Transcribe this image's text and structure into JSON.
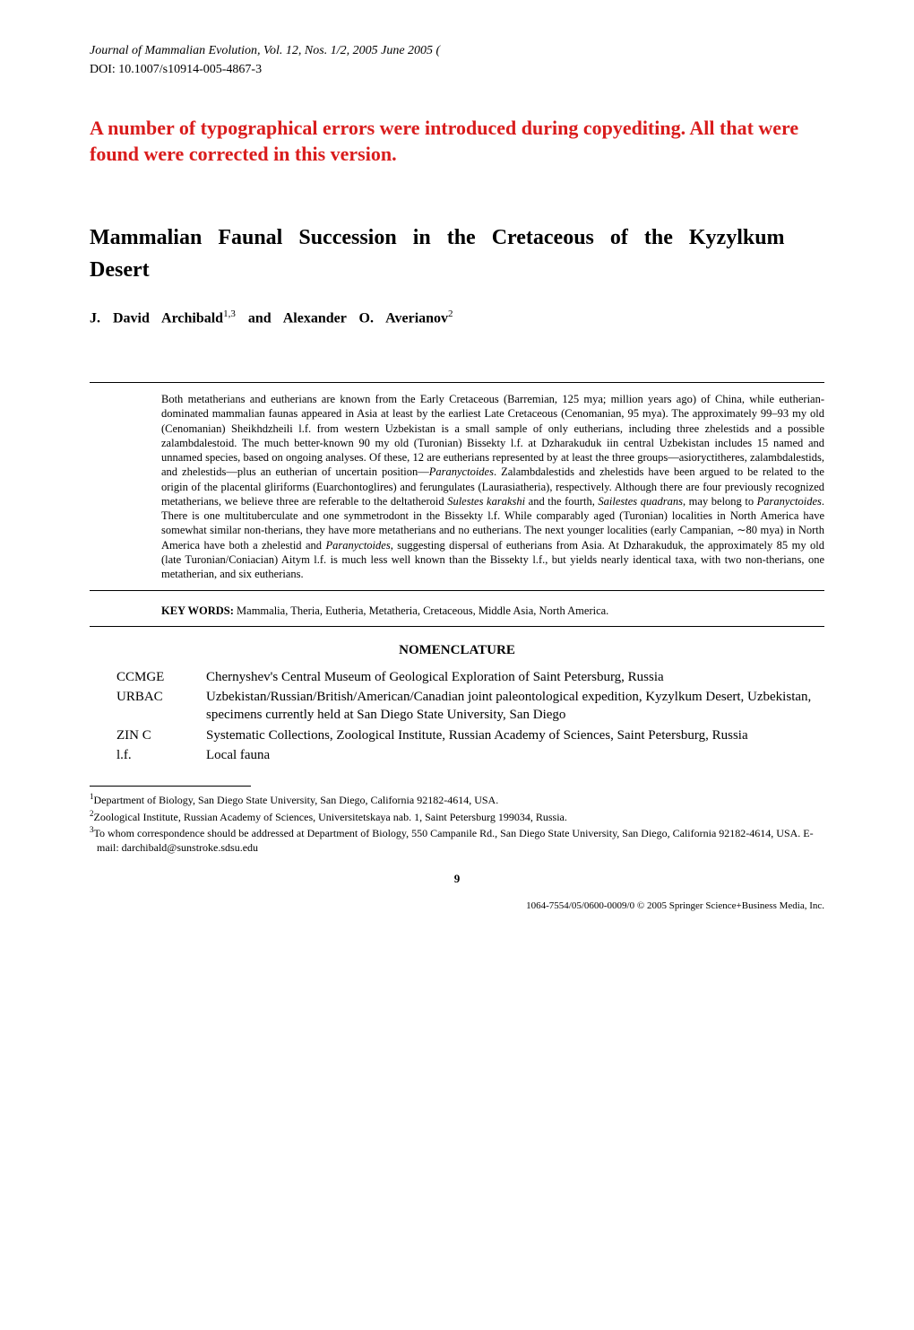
{
  "header": {
    "journal_line": "Journal of Mammalian Evolution, Vol. 12, Nos. 1/2, 2005 June 2005 (",
    "doi": "DOI: 10.1007/s10914-005-4867-3"
  },
  "red_notice": "A number of typographical errors were introduced during copyediting.  All that were found were corrected in this version.",
  "title": "Mammalian Faunal Succession in the Cretaceous of the Kyzylkum Desert",
  "authors": {
    "prefix_1": "J. David Archibald",
    "sup_1": "1,3",
    "connector": "and Alexander O. Averianov",
    "sup_2": "2"
  },
  "abstract": "Both metatherians and eutherians are known from the Early Cretaceous (Barremian, 125 mya; million years ago) of China, while eutherian-dominated mammalian faunas appeared in Asia at least by the earliest Late Cretaceous (Cenomanian, 95 mya). The approximately 99–93 my old (Cenomanian) Sheikhdzheili l.f. from western Uzbekistan is a small sample of only eutherians, including three zhelestids and a possible zalambdalestoid. The much better-known 90 my old (Turonian) Bissekty l.f. at Dzharakuduk iin central Uzbekistan includes 15 named and unnamed species, based on ongoing analyses. Of these, 12 are eutherians represented by at least the three groups—asioryctitheres, zalambdalestids, and zhelestids—plus an eutherian of uncertain position—Paranyctoides. Zalambdalestids and zhelestids have been argued to be related to the origin of the placental gliriforms (Euarchontoglires) and ferungulates (Laurasiatheria), respectively. Although there are four previously recognized metatherians, we believe three are referable to the deltatheroid Sulestes karakshi and the fourth, Sailestes quadrans, may belong to Paranyctoides. There is one multituberculate and one symmetrodont in the Bissekty l.f. While comparably aged (Turonian) localities in North America have somewhat similar non-therians, they have more metatherians and no eutherians. The next younger localities (early Campanian, ∼80 mya) in North America have both a zhelestid and Paranyctoides, suggesting dispersal of eutherians from Asia. At Dzharakuduk, the approximately 85 my old (late Turonian/Coniacian) Aitym l.f. is much less well known than the Bissekty l.f., but yields nearly identical taxa, with two non-therians, one metatherian, and six eutherians.",
  "keywords": {
    "label": "KEY WORDS:",
    "text": " Mammalia, Theria, Eutheria, Metatheria, Cretaceous, Middle Asia, North America."
  },
  "nomenclature": {
    "heading": "NOMENCLATURE",
    "items": [
      {
        "abbrev": "CCMGE",
        "desc": "Chernyshev's Central Museum of Geological Exploration of Saint Petersburg, Russia"
      },
      {
        "abbrev": "URBAC",
        "desc": "Uzbekistan/Russian/British/American/Canadian joint paleontological expedition, Kyzylkum Desert, Uzbekistan, specimens currently held at San Diego State University, San Diego"
      },
      {
        "abbrev": "ZIN C",
        "desc": "Systematic Collections, Zoological Institute, Russian Academy of Sciences, Saint Petersburg, Russia"
      },
      {
        "abbrev": "l.f.",
        "desc": "Local fauna"
      }
    ]
  },
  "footnotes": [
    {
      "num": "1",
      "text": "Department of Biology, San Diego State University, San Diego, California 92182-4614, USA."
    },
    {
      "num": "2",
      "text": "Zoological Institute, Russian Academy of Sciences, Universitetskaya nab. 1, Saint Petersburg 199034, Russia."
    },
    {
      "num": "3",
      "text": "To whom correspondence should be addressed at Department of Biology, 550 Campanile Rd., San Diego State University, San Diego, California 92182-4614, USA. E-mail: darchibald@sunstroke.sdsu.edu"
    }
  ],
  "page_number": "9",
  "copyright": "1064-7554/05/0600-0009/0 © 2005 Springer Science+Business Media, Inc."
}
